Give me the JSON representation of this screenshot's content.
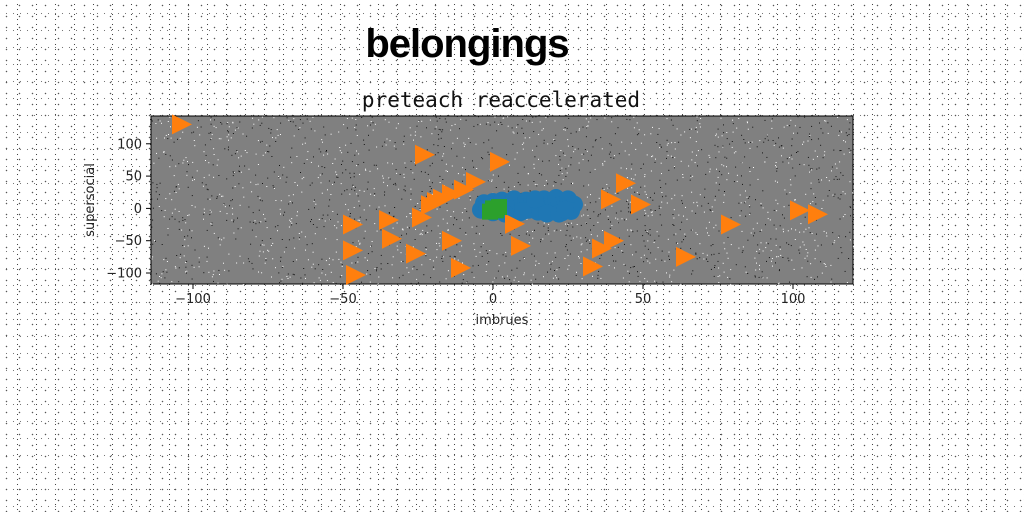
{
  "page": {
    "suptitle": "belongings"
  },
  "chart_data": {
    "type": "scatter",
    "title": "preteach reaccelerated",
    "xlabel": "imbrues",
    "ylabel": "supersocial",
    "xlim": [
      -114,
      120
    ],
    "ylim": [
      -117,
      143
    ],
    "xticks": [
      -100,
      -50,
      0,
      50,
      100
    ],
    "xtick_labels": [
      "−100",
      "−50",
      "0",
      "50",
      "100"
    ],
    "yticks": [
      100,
      50,
      0,
      -50,
      -100
    ],
    "ytick_labels": [
      "100",
      "50",
      "0",
      "−50",
      "−100"
    ],
    "grid": false,
    "background": "#808080",
    "series": [
      {
        "marker": "circle",
        "color": "#1f77b4",
        "points": [
          [
            -3,
            8
          ],
          [
            -1,
            4
          ],
          [
            0,
            10
          ],
          [
            1,
            -3
          ],
          [
            2,
            6
          ],
          [
            3,
            12
          ],
          [
            4,
            2
          ],
          [
            5,
            -4
          ],
          [
            6,
            8
          ],
          [
            7,
            14
          ],
          [
            8,
            0
          ],
          [
            9,
            -6
          ],
          [
            10,
            6
          ],
          [
            11,
            12
          ],
          [
            12,
            -2
          ],
          [
            13,
            10
          ],
          [
            14,
            4
          ],
          [
            15,
            -5
          ],
          [
            16,
            8
          ],
          [
            17,
            14
          ],
          [
            18,
            2
          ],
          [
            19,
            -4
          ],
          [
            20,
            10
          ],
          [
            21,
            16
          ],
          [
            22,
            4
          ],
          [
            23,
            -6
          ],
          [
            24,
            8
          ],
          [
            25,
            14
          ],
          [
            26,
            0
          ],
          [
            27,
            6
          ],
          [
            -4,
            -2
          ],
          [
            -2,
            0
          ],
          [
            4,
            -8
          ],
          [
            10,
            -4
          ],
          [
            18,
            -8
          ],
          [
            22,
            -8
          ],
          [
            26,
            -4
          ],
          [
            0,
            -6
          ],
          [
            14,
            14
          ],
          [
            24,
            -2
          ]
        ]
      },
      {
        "marker": "triangle-right",
        "color": "#ff7f0e",
        "points": [
          [
            -104,
            130
          ],
          [
            -23,
            83
          ],
          [
            2,
            72
          ],
          [
            -6,
            41
          ],
          [
            44,
            39
          ],
          [
            -10,
            29
          ],
          [
            -14,
            22
          ],
          [
            -17,
            15
          ],
          [
            -19,
            10
          ],
          [
            -21,
            5
          ],
          [
            39,
            14
          ],
          [
            49,
            6
          ],
          [
            -24,
            -14
          ],
          [
            -47,
            -25
          ],
          [
            -35,
            -18
          ],
          [
            -34,
            -47
          ],
          [
            7,
            -24
          ],
          [
            79,
            -25
          ],
          [
            102,
            -3
          ],
          [
            108,
            -9
          ],
          [
            -47,
            -65
          ],
          [
            -14,
            -50
          ],
          [
            -26,
            -70
          ],
          [
            9,
            -58
          ],
          [
            36,
            -62
          ],
          [
            40,
            -50
          ],
          [
            64,
            -75
          ],
          [
            -11,
            -92
          ],
          [
            33,
            -90
          ],
          [
            -46,
            -103
          ]
        ]
      },
      {
        "marker": "square",
        "color": "#2ca02c",
        "points": [
          [
            0,
            -2
          ],
          [
            -1,
            -5
          ],
          [
            1,
            -3
          ],
          [
            0,
            0
          ],
          [
            2,
            2
          ]
        ]
      }
    ]
  }
}
